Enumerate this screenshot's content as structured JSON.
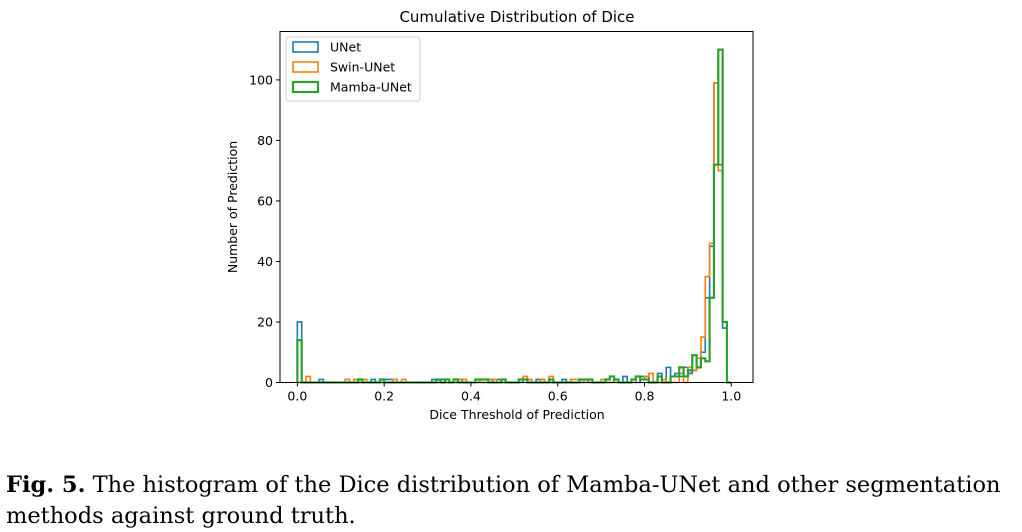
{
  "caption": {
    "label": "Fig. 5.",
    "text": " The histogram of the Dice distribution of Mamba-UNet and other segmentation methods against ground truth."
  },
  "chart_data": {
    "type": "histogram",
    "title": "Cumulative Distribution of Dice",
    "xlabel": "Dice Threshold of Prediction",
    "ylabel": "Number of Prediction",
    "xlim": [
      -0.04,
      1.05
    ],
    "ylim": [
      0,
      116
    ],
    "xticks": [
      0.0,
      0.2,
      0.4,
      0.6,
      0.8,
      1.0
    ],
    "xtick_labels": [
      "0.0",
      "0.2",
      "0.4",
      "0.6",
      "0.8",
      "1.0"
    ],
    "yticks": [
      0,
      20,
      40,
      60,
      80,
      100
    ],
    "ytick_labels": [
      "0",
      "20",
      "40",
      "60",
      "80",
      "100"
    ],
    "grid": false,
    "legend": "top-left",
    "bin_start": 0.0,
    "bin_width": 0.01,
    "series": [
      {
        "name": "UNet",
        "color": "#1f77b4",
        "counts": [
          20,
          0,
          0,
          0,
          0,
          1,
          0,
          0,
          0,
          0,
          0,
          0,
          0,
          0,
          0,
          0,
          0,
          1,
          0,
          0,
          1,
          1,
          0,
          0,
          0,
          0,
          0,
          0,
          0,
          0,
          0,
          1,
          0,
          1,
          0,
          0,
          1,
          1,
          0,
          0,
          0,
          0,
          0,
          0,
          1,
          0,
          1,
          1,
          0,
          0,
          0,
          0,
          1,
          0,
          0,
          1,
          1,
          0,
          0,
          0,
          0,
          1,
          0,
          0,
          0,
          0,
          1,
          0,
          0,
          0,
          0,
          0,
          0,
          1,
          0,
          2,
          0,
          1,
          0,
          2,
          2,
          0,
          0,
          3,
          0,
          5,
          2,
          3,
          2,
          5,
          3,
          4,
          5,
          10,
          28,
          45,
          99,
          72,
          18,
          0
        ]
      },
      {
        "name": "Swin-UNet",
        "color": "#ff7f0e",
        "counts": [
          0,
          0,
          2,
          0,
          0,
          0,
          0,
          0,
          0,
          0,
          0,
          1,
          0,
          1,
          0,
          1,
          0,
          0,
          0,
          1,
          0,
          0,
          1,
          0,
          1,
          0,
          0,
          0,
          0,
          0,
          0,
          0,
          0,
          0,
          0,
          0,
          0,
          1,
          1,
          0,
          0,
          1,
          0,
          0,
          1,
          1,
          0,
          0,
          0,
          0,
          0,
          1,
          2,
          1,
          0,
          0,
          1,
          0,
          2,
          0,
          0,
          0,
          0,
          1,
          1,
          1,
          0,
          0,
          0,
          0,
          1,
          0,
          0,
          0,
          0,
          0,
          0,
          0,
          2,
          1,
          2,
          3,
          0,
          0,
          1,
          0,
          0,
          0,
          3,
          0,
          5,
          4,
          8,
          15,
          35,
          46,
          99,
          70,
          20,
          0
        ]
      },
      {
        "name": "Mamba-UNet",
        "color": "#2ca02c",
        "counts": [
          14,
          0,
          0,
          0,
          0,
          0,
          0,
          0,
          0,
          0,
          0,
          0,
          0,
          0,
          1,
          0,
          0,
          0,
          0,
          1,
          0,
          0,
          0,
          0,
          0,
          0,
          0,
          0,
          0,
          0,
          0,
          0,
          1,
          0,
          1,
          0,
          1,
          0,
          0,
          0,
          0,
          1,
          1,
          1,
          0,
          0,
          0,
          1,
          0,
          0,
          0,
          1,
          1,
          0,
          0,
          0,
          0,
          0,
          1,
          0,
          0,
          0,
          0,
          0,
          0,
          1,
          1,
          1,
          0,
          0,
          0,
          1,
          2,
          1,
          0,
          0,
          0,
          1,
          2,
          1,
          1,
          0,
          0,
          2,
          0,
          0,
          2,
          2,
          5,
          2,
          4,
          9,
          5,
          8,
          7,
          28,
          72,
          110,
          20,
          0
        ]
      }
    ]
  }
}
